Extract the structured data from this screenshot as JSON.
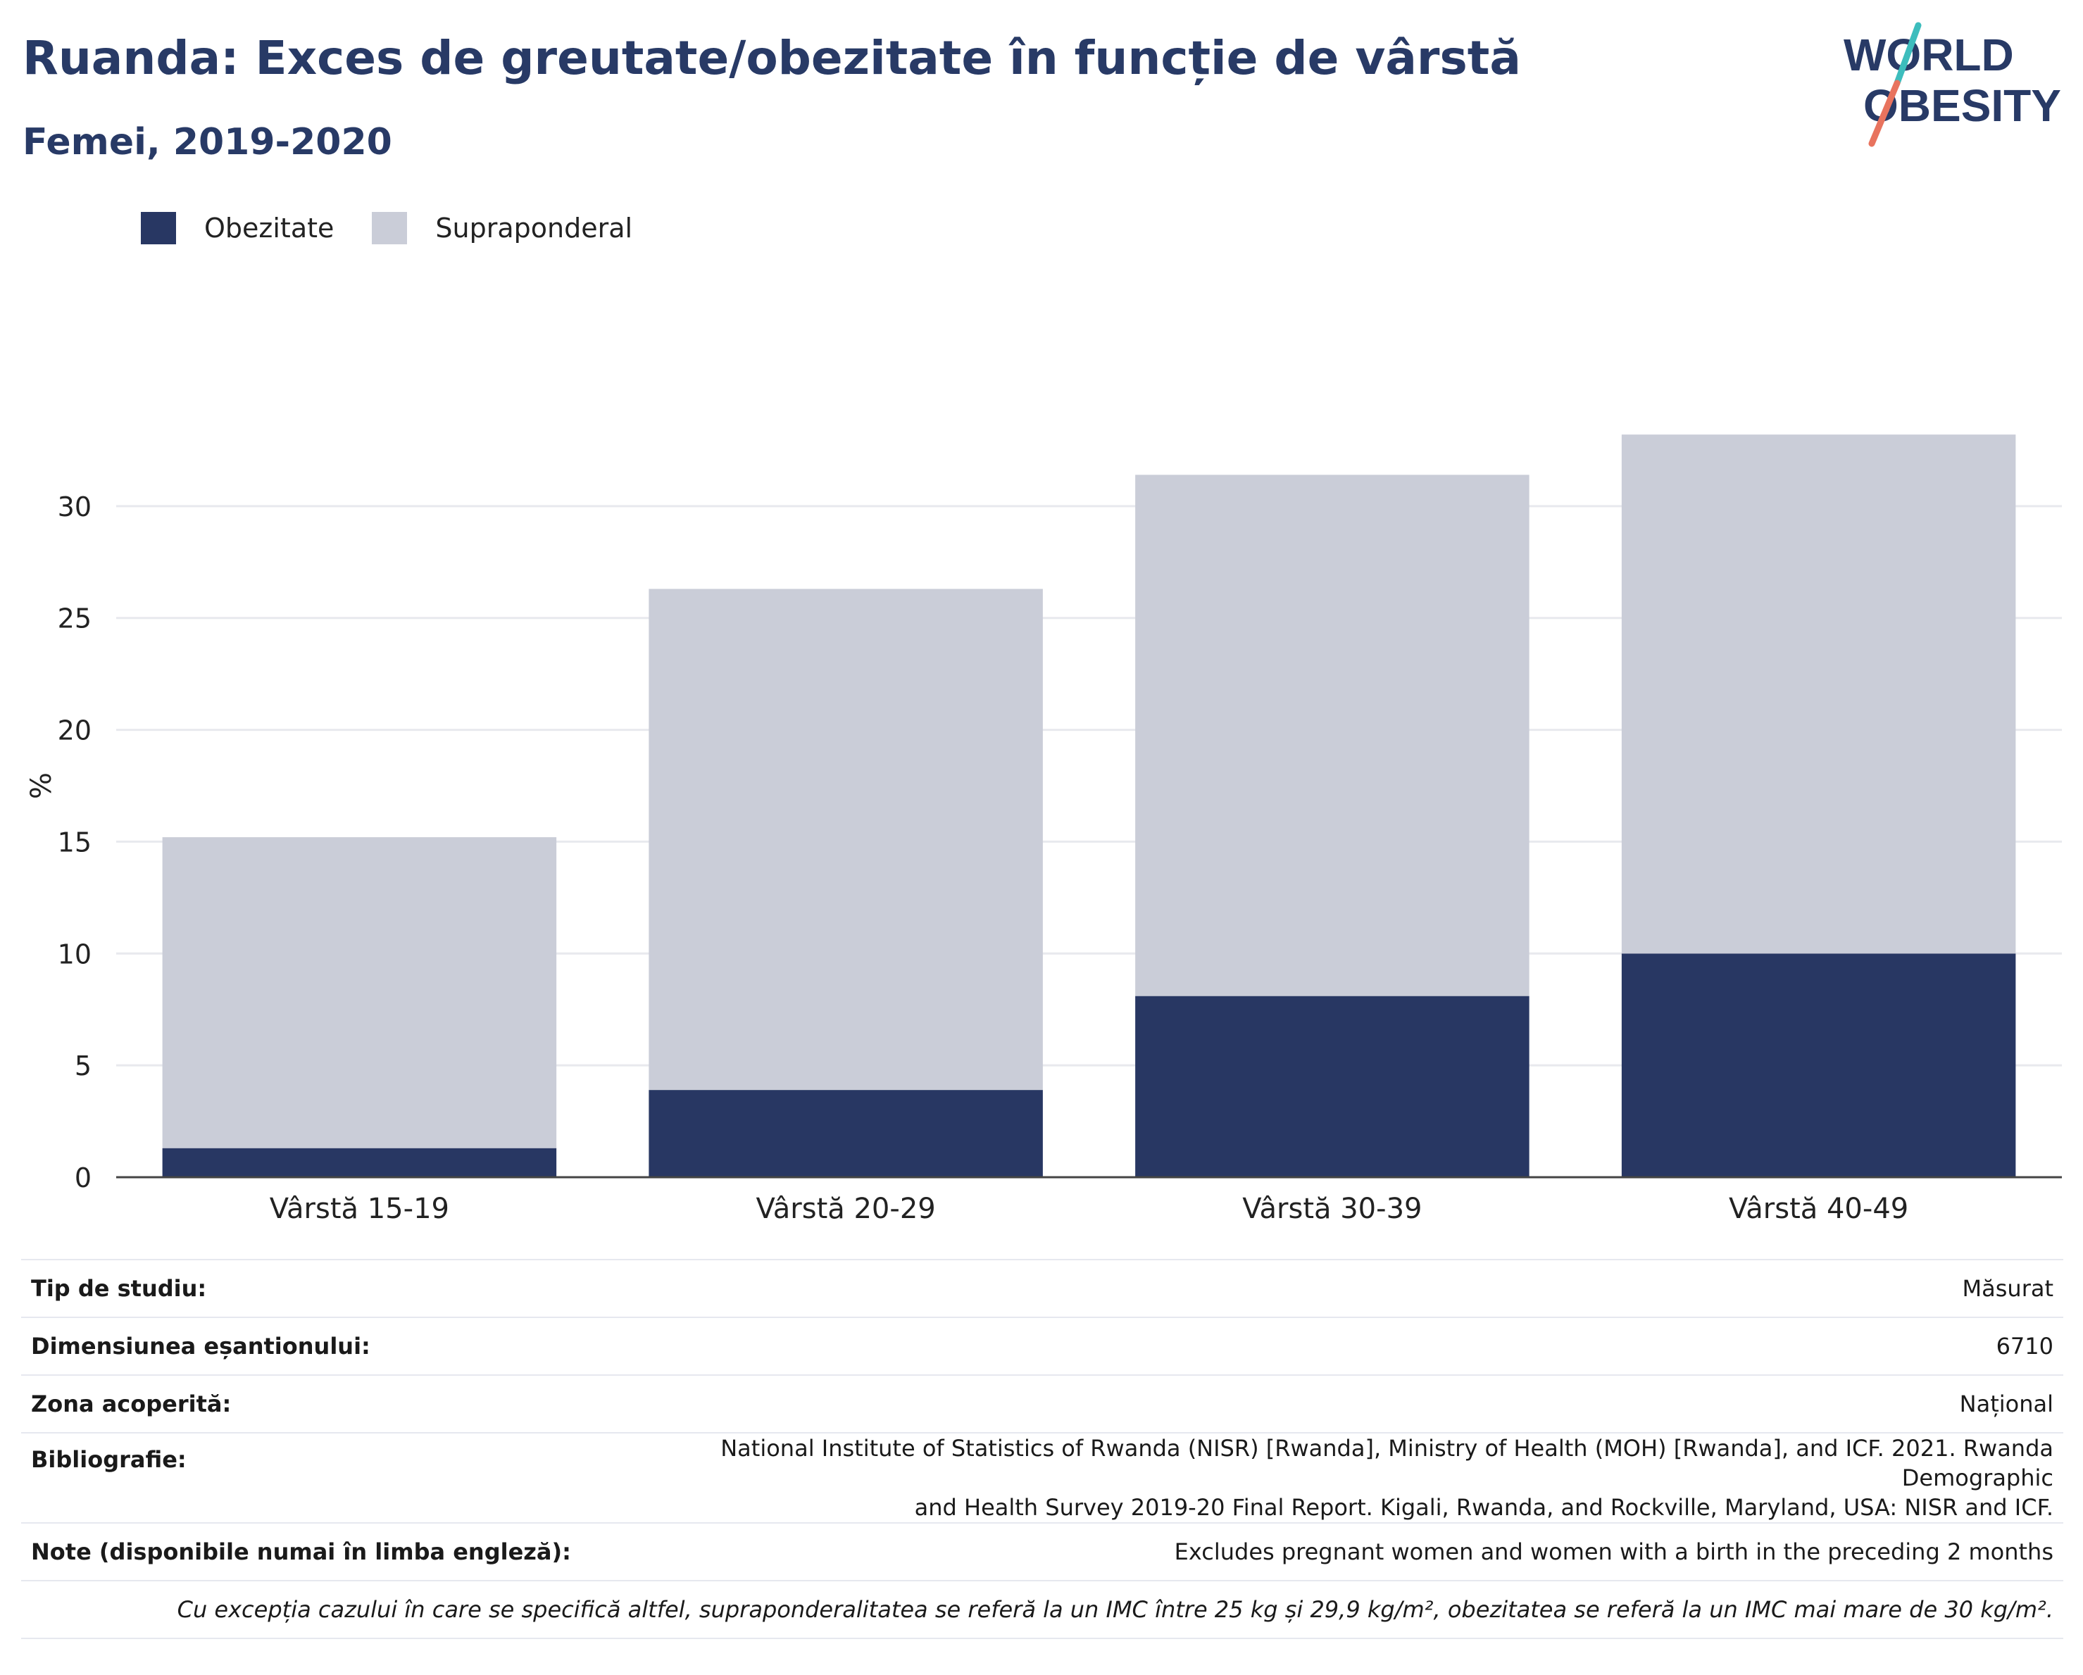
{
  "header": {
    "title": "Ruanda: Exces de greutate/obezitate în funcție de vârstă",
    "subtitle": "Femei, 2019-2020"
  },
  "logo": {
    "line1": "WORLD",
    "line2": "OBESITY",
    "colors": {
      "text": "#283a66",
      "slash_top": "#3dbdbd",
      "slash_bottom": "#e8735e"
    }
  },
  "colors": {
    "obesity": "#283763",
    "overweight": "#cacdd8",
    "grid": "#e8e9ee",
    "axis": "#444444"
  },
  "legend": {
    "items": [
      {
        "label": "Obezitate",
        "color": "#283763"
      },
      {
        "label": "Supraponderal",
        "color": "#cacdd8"
      }
    ]
  },
  "chart_data": {
    "type": "bar",
    "stacked": true,
    "categories": [
      "Vârstă 15-19",
      "Vârstă 20-29",
      "Vârstă 30-39",
      "Vârstă 40-49"
    ],
    "series": [
      {
        "name": "Obezitate",
        "values": [
          1.3,
          3.9,
          8.1,
          10.0
        ]
      },
      {
        "name": "Supraponderal",
        "values": [
          13.9,
          22.4,
          23.3,
          23.2
        ]
      }
    ],
    "ylabel": "%",
    "yticks": [
      0,
      5,
      10,
      15,
      20,
      25,
      30
    ],
    "ylim": [
      0,
      35
    ],
    "grid": true,
    "legend_position": "top-left"
  },
  "meta": {
    "rows": [
      {
        "key": "Tip de studiu:",
        "value": "Măsurat"
      },
      {
        "key": "Dimensiunea eșantionului:",
        "value": "6710"
      },
      {
        "key": "Zona acoperită:",
        "value": "Național"
      },
      {
        "key": "Bibliografie:",
        "value_line1": "National Institute of Statistics of Rwanda (NISR) [Rwanda], Ministry of Health (MOH) [Rwanda], and ICF. 2021. Rwanda Demographic",
        "value_line2": "and Health Survey 2019-20 Final Report. Kigali, Rwanda, and Rockville, Maryland, USA: NISR and ICF."
      },
      {
        "key": "Note (disponibile numai în limba engleză):",
        "value": "Excludes pregnant women and women with a birth in the preceding 2 months"
      }
    ],
    "footnote": "Cu excepția cazului în care se specifică altfel, supraponderalitatea se referă la un IMC între 25 kg și 29,9 kg/m², obezitatea se referă la un IMC mai mare de 30 kg/m²."
  }
}
